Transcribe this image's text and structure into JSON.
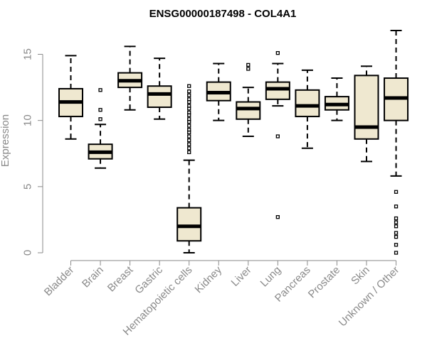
{
  "chart_data": {
    "type": "boxplot",
    "title": "ENSG00000187498 - COL4A1",
    "ylabel": "Expression",
    "ylim": [
      0,
      16.5
    ],
    "yticks": [
      0,
      5,
      10,
      15
    ],
    "grid": false,
    "colors": {
      "box_fill": "#efe8d0",
      "box_stroke": "#000000",
      "axis": "#8a8a8a"
    },
    "categories": [
      "Bladder",
      "Brain",
      "Breast",
      "Gastric",
      "Hematopoietic cells",
      "Kidney",
      "Liver",
      "Lung",
      "Pancreas",
      "Prostate",
      "Skin",
      "Unknown / Other"
    ],
    "boxes": [
      {
        "whisker_low": 8.6,
        "q1": 10.3,
        "median": 11.4,
        "q3": 12.4,
        "whisker_high": 14.9,
        "outliers": []
      },
      {
        "whisker_low": 6.4,
        "q1": 7.1,
        "median": 7.6,
        "q3": 8.2,
        "whisker_high": 9.7,
        "outliers": [
          10.1,
          10.8,
          12.3
        ]
      },
      {
        "whisker_low": 10.8,
        "q1": 12.5,
        "median": 13.0,
        "q3": 13.6,
        "whisker_high": 15.6,
        "outliers": []
      },
      {
        "whisker_low": 10.1,
        "q1": 11.0,
        "median": 12.0,
        "q3": 12.6,
        "whisker_high": 14.7,
        "outliers": []
      },
      {
        "whisker_low": 0.0,
        "q1": 0.9,
        "median": 2.0,
        "q3": 3.4,
        "whisker_high": 7.0,
        "outliers": [
          7.6,
          7.9,
          8.2,
          8.5,
          8.8,
          9.1,
          9.3,
          9.6,
          9.9,
          10.1,
          10.4,
          10.6,
          10.9,
          11.1,
          11.4,
          11.6,
          11.9,
          12.2,
          12.6
        ]
      },
      {
        "whisker_low": 10.0,
        "q1": 11.5,
        "median": 12.1,
        "q3": 12.9,
        "whisker_high": 14.3,
        "outliers": []
      },
      {
        "whisker_low": 8.8,
        "q1": 10.1,
        "median": 10.9,
        "q3": 11.4,
        "whisker_high": 12.5,
        "outliers": [
          13.9,
          14.2
        ]
      },
      {
        "whisker_low": 11.1,
        "q1": 11.6,
        "median": 12.4,
        "q3": 12.9,
        "whisker_high": 14.3,
        "outliers": [
          2.7,
          8.8,
          15.1
        ]
      },
      {
        "whisker_low": 7.9,
        "q1": 10.3,
        "median": 11.1,
        "q3": 12.3,
        "whisker_high": 13.8,
        "outliers": []
      },
      {
        "whisker_low": 10.0,
        "q1": 10.8,
        "median": 11.2,
        "q3": 11.8,
        "whisker_high": 13.2,
        "outliers": []
      },
      {
        "whisker_low": 6.9,
        "q1": 8.6,
        "median": 9.5,
        "q3": 13.4,
        "whisker_high": 14.1,
        "outliers": []
      },
      {
        "whisker_low": 5.8,
        "q1": 10.0,
        "median": 11.7,
        "q3": 13.2,
        "whisker_high": 16.8,
        "outliers": [
          0.0,
          0.6,
          1.2,
          1.5,
          2.0,
          2.3,
          2.6,
          3.5,
          4.6
        ]
      }
    ]
  }
}
